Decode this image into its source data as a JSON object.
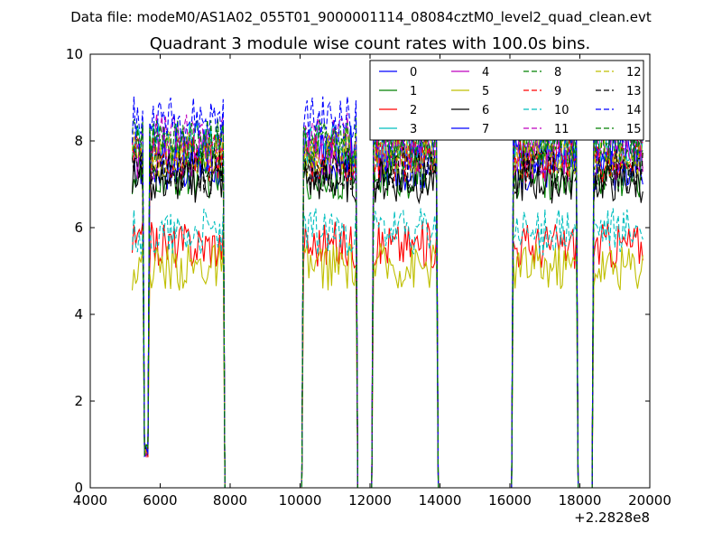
{
  "chart_data": {
    "type": "line",
    "suptitle": "Data file: modeM0/AS1A02_055T01_9000001114_08084cztM0_level2_quad_clean.evt",
    "title": "Quadrant 3 module wise count rates with 100.0s bins.",
    "xlabel": "",
    "ylabel": "",
    "x_offset_label": "+2.2828e8",
    "xlim": [
      4000,
      20000
    ],
    "ylim": [
      0,
      10
    ],
    "xticks": [
      4000,
      6000,
      8000,
      10000,
      12000,
      14000,
      16000,
      18000,
      20000
    ],
    "yticks": [
      0,
      2,
      4,
      6,
      8,
      10
    ],
    "grid": false,
    "legend_position": "top-right",
    "legend_columns": 4,
    "bin_seconds": 100,
    "active_segments": [
      [
        5200,
        7800
      ],
      [
        10100,
        11600
      ],
      [
        12100,
        13900
      ],
      [
        16100,
        17900
      ],
      [
        18400,
        19800
      ]
    ],
    "segment_dips": [
      [
        5600,
        0.7
      ]
    ],
    "series": [
      {
        "name": "0",
        "color": "#0000ff",
        "dash": "solid",
        "level": 7.4
      },
      {
        "name": "1",
        "color": "#008000",
        "dash": "solid",
        "level": 7.2
      },
      {
        "name": "2",
        "color": "#ff0000",
        "dash": "solid",
        "level": 5.6
      },
      {
        "name": "3",
        "color": "#00bfbf",
        "dash": "solid",
        "level": 7.9
      },
      {
        "name": "4",
        "color": "#bf00bf",
        "dash": "solid",
        "level": 7.6
      },
      {
        "name": "5",
        "color": "#bfbf00",
        "dash": "solid",
        "level": 5.1
      },
      {
        "name": "6",
        "color": "#000000",
        "dash": "solid",
        "level": 7.1
      },
      {
        "name": "7",
        "color": "#0000ff",
        "dash": "solid",
        "level": 7.8
      },
      {
        "name": "8",
        "color": "#008000",
        "dash": "dashed",
        "level": 8.0
      },
      {
        "name": "9",
        "color": "#ff0000",
        "dash": "dashed",
        "level": 7.6
      },
      {
        "name": "10",
        "color": "#00bfbf",
        "dash": "dashed",
        "level": 5.9
      },
      {
        "name": "11",
        "color": "#bf00bf",
        "dash": "dashed",
        "level": 8.1
      },
      {
        "name": "12",
        "color": "#bfbf00",
        "dash": "dashed",
        "level": 7.7
      },
      {
        "name": "13",
        "color": "#000000",
        "dash": "dashed",
        "level": 7.3
      },
      {
        "name": "14",
        "color": "#0000ff",
        "dash": "dashed",
        "level": 8.5
      },
      {
        "name": "15",
        "color": "#008000",
        "dash": "dashed",
        "level": 7.9
      }
    ]
  }
}
